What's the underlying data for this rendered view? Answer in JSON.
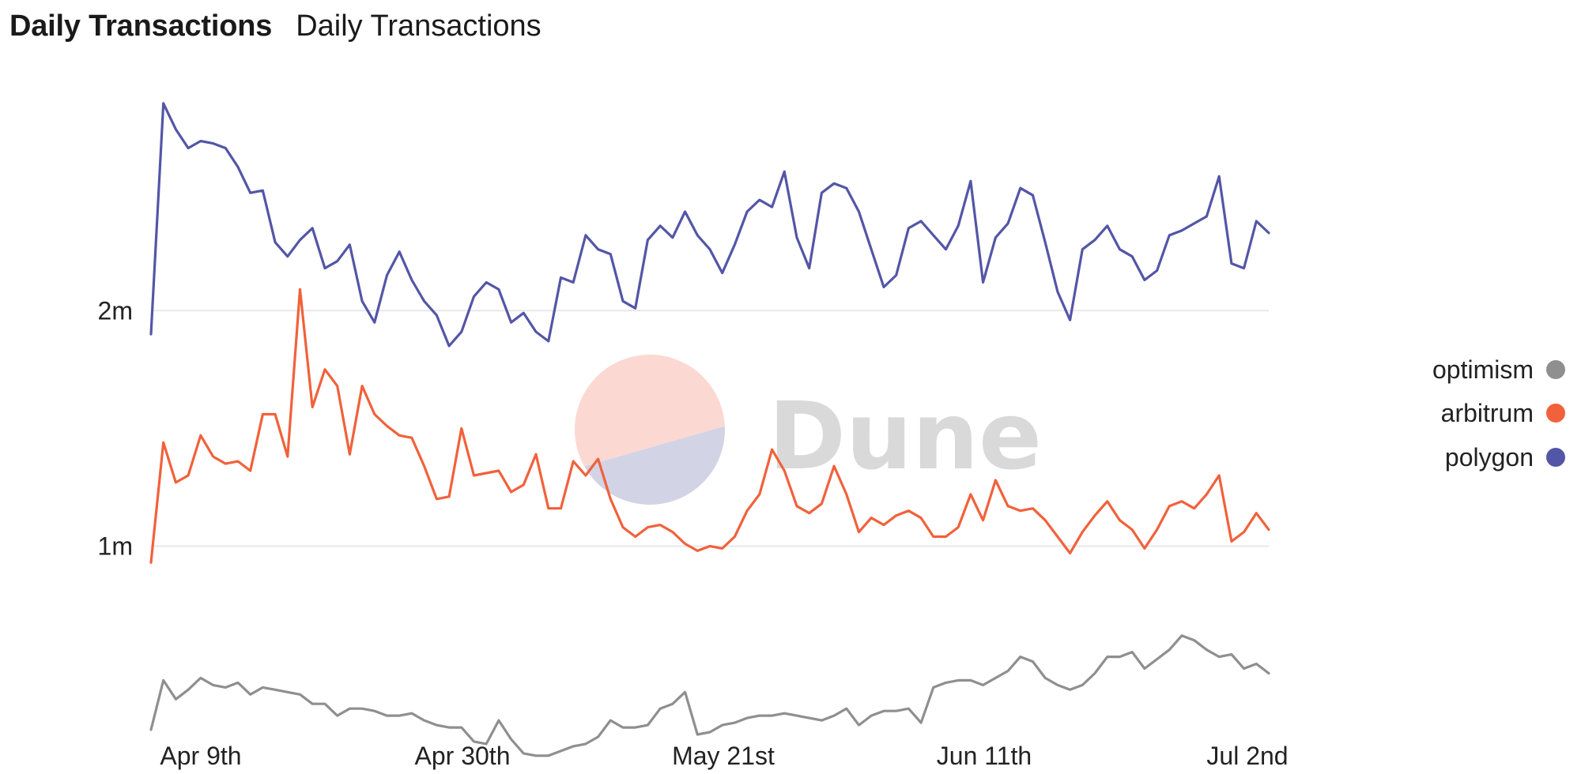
{
  "header": {
    "title": "Daily Transactions",
    "subtitle": "Daily Transactions"
  },
  "watermark": {
    "text": "Dune",
    "circle_top_color": "#fbd9d2",
    "circle_bottom_color": "#d3d3e6"
  },
  "chart_data": {
    "type": "line",
    "title": "Daily Transactions",
    "xlabel": "",
    "ylabel": "",
    "x_start": "Apr 5th",
    "x_ticks": [
      "Apr 9th",
      "Apr 30th",
      "May 21st",
      "Jun 11th",
      "Jul 2nd"
    ],
    "y_ticks": [
      {
        "value": 1000000,
        "label": "1m"
      },
      {
        "value": 2000000,
        "label": "2m"
      }
    ],
    "ylim": [
      200000,
      2950000
    ],
    "grid": "horizontal",
    "legend_position": "right",
    "series": [
      {
        "name": "polygon",
        "color": "#5356a6",
        "values": [
          1900000,
          2880000,
          2770000,
          2690000,
          2720000,
          2710000,
          2690000,
          2610000,
          2500000,
          2510000,
          2290000,
          2230000,
          2300000,
          2350000,
          2180000,
          2210000,
          2280000,
          2040000,
          1950000,
          2150000,
          2250000,
          2130000,
          2040000,
          1980000,
          1850000,
          1910000,
          2060000,
          2120000,
          2090000,
          1950000,
          1990000,
          1910000,
          1870000,
          2140000,
          2120000,
          2320000,
          2260000,
          2240000,
          2040000,
          2010000,
          2300000,
          2360000,
          2310000,
          2420000,
          2320000,
          2260000,
          2160000,
          2280000,
          2420000,
          2470000,
          2440000,
          2590000,
          2310000,
          2180000,
          2500000,
          2540000,
          2520000,
          2420000,
          2260000,
          2100000,
          2150000,
          2350000,
          2380000,
          2320000,
          2260000,
          2360000,
          2550000,
          2120000,
          2310000,
          2370000,
          2520000,
          2490000,
          2290000,
          2080000,
          1960000,
          2260000,
          2300000,
          2360000,
          2260000,
          2230000,
          2130000,
          2170000,
          2320000,
          2340000,
          2370000,
          2400000,
          2570000,
          2200000,
          2180000,
          2380000,
          2330000
        ]
      },
      {
        "name": "arbitrum",
        "color": "#f1613b",
        "values": [
          930000,
          1440000,
          1270000,
          1300000,
          1470000,
          1380000,
          1350000,
          1360000,
          1320000,
          1560000,
          1560000,
          1380000,
          2090000,
          1590000,
          1750000,
          1680000,
          1390000,
          1680000,
          1560000,
          1510000,
          1470000,
          1460000,
          1340000,
          1200000,
          1210000,
          1500000,
          1300000,
          1310000,
          1320000,
          1230000,
          1260000,
          1390000,
          1160000,
          1160000,
          1360000,
          1300000,
          1370000,
          1200000,
          1080000,
          1040000,
          1080000,
          1090000,
          1060000,
          1010000,
          980000,
          1000000,
          990000,
          1040000,
          1150000,
          1220000,
          1410000,
          1320000,
          1170000,
          1140000,
          1180000,
          1340000,
          1220000,
          1060000,
          1120000,
          1090000,
          1130000,
          1150000,
          1120000,
          1040000,
          1040000,
          1080000,
          1220000,
          1110000,
          1280000,
          1170000,
          1150000,
          1160000,
          1110000,
          1040000,
          970000,
          1060000,
          1130000,
          1190000,
          1110000,
          1070000,
          990000,
          1070000,
          1170000,
          1190000,
          1160000,
          1220000,
          1300000,
          1020000,
          1060000,
          1140000,
          1070000
        ]
      },
      {
        "name": "optimism",
        "color": "#8f8f8f",
        "values": [
          220000,
          430000,
          350000,
          390000,
          440000,
          410000,
          400000,
          420000,
          370000,
          400000,
          390000,
          380000,
          370000,
          330000,
          330000,
          280000,
          310000,
          310000,
          300000,
          280000,
          280000,
          290000,
          260000,
          240000,
          230000,
          230000,
          170000,
          160000,
          260000,
          180000,
          120000,
          110000,
          110000,
          130000,
          150000,
          160000,
          190000,
          260000,
          230000,
          230000,
          240000,
          310000,
          330000,
          380000,
          200000,
          210000,
          240000,
          250000,
          270000,
          280000,
          280000,
          290000,
          280000,
          270000,
          260000,
          280000,
          310000,
          240000,
          280000,
          300000,
          300000,
          310000,
          250000,
          400000,
          420000,
          430000,
          430000,
          410000,
          440000,
          470000,
          530000,
          510000,
          440000,
          410000,
          390000,
          410000,
          460000,
          530000,
          530000,
          550000,
          480000,
          520000,
          560000,
          620000,
          600000,
          560000,
          530000,
          540000,
          480000,
          500000,
          460000
        ]
      }
    ]
  }
}
